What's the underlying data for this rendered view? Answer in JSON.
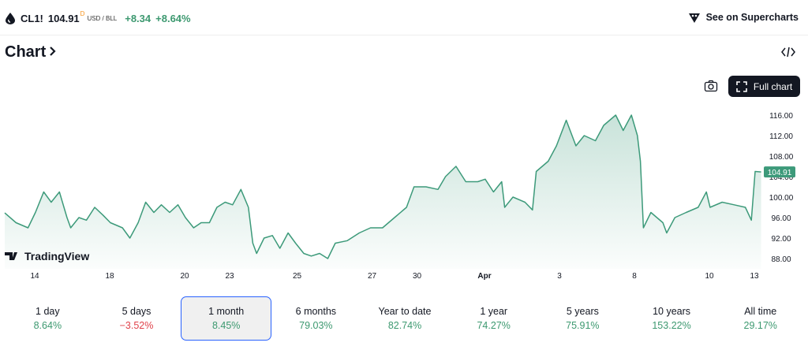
{
  "header": {
    "symbol": "CL1!",
    "price": "104.91",
    "price_superscript": "D",
    "currency": "USD / BLL",
    "change": "+8.34",
    "change_percent": "+8.64%",
    "supercharts": "See on Supercharts"
  },
  "section_title": "Chart",
  "full_chart": "Full chart",
  "watermark": "TradingView",
  "chart_data": {
    "type": "line",
    "color": "#3d9a7a",
    "x": [
      0,
      1.5,
      3.1,
      4.1,
      5.2,
      6.2,
      7.3,
      8.3,
      8.8,
      9.9,
      10.9,
      12,
      13.1,
      14.1,
      15.7,
      16.7,
      17.8,
      18.8,
      19.9,
      20.9,
      22,
      23.1,
      24.1,
      25.2,
      26.2,
      27.3,
      28.3,
      29.4,
      30.4,
      31.5,
      32.5,
      33.1,
      33.6,
      34.6,
      35.7,
      36.7,
      37.8,
      38.8,
      39.9,
      40.9,
      42,
      43.1,
      44.1,
      45.7,
      47.3,
      48.8,
      50.4,
      52,
      53.6,
      54.6,
      56.2,
      57.8,
      58.8,
      60.2,
      61.5,
      63.1,
      64.1,
      65.2,
      66.3,
      66.7,
      67.8,
      69.4,
      70.4,
      70.9,
      72.5,
      73.6,
      74.9,
      76.2,
      77.3,
      78.8,
      79.9,
      81.5,
      82.5,
      83.6,
      84.4,
      84.8,
      85.2,
      86.2,
      87.8,
      88.3,
      89.4,
      90.9,
      92.5,
      93.6,
      94.1,
      95.7,
      97.3,
      98.8,
      99.6,
      100.1,
      100.9
    ],
    "values": [
      96.9,
      95,
      94,
      97,
      101,
      99,
      101,
      96,
      94,
      96,
      95.5,
      98,
      96.5,
      95,
      94,
      92,
      95,
      99,
      97,
      98.5,
      97,
      98.5,
      96,
      94,
      95,
      95,
      98,
      99,
      98.5,
      101.5,
      98,
      91,
      89,
      92,
      92.5,
      90,
      93,
      91,
      89,
      88.5,
      89,
      88,
      91,
      91.5,
      93,
      94,
      94,
      96,
      98,
      102,
      102,
      101.5,
      104,
      106,
      103,
      103,
      103.5,
      101,
      103,
      98,
      100,
      99,
      97.5,
      105,
      107,
      110,
      115,
      110,
      112,
      111,
      114,
      116,
      113,
      116,
      112,
      107,
      94,
      97,
      95,
      93,
      96,
      97,
      98,
      101,
      98,
      99,
      98.5,
      98,
      95.5,
      105,
      104.91
    ],
    "xlim": [
      0,
      101
    ],
    "xticks": [
      {
        "value": 4,
        "label": "14"
      },
      {
        "value": 14,
        "label": "18"
      },
      {
        "value": 24,
        "label": "20"
      },
      {
        "value": 30,
        "label": "23"
      },
      {
        "value": 39,
        "label": "25"
      },
      {
        "value": 49,
        "label": "27"
      },
      {
        "value": 55,
        "label": "30"
      },
      {
        "value": 64,
        "label": "Apr"
      },
      {
        "value": 74,
        "label": "3"
      },
      {
        "value": 84,
        "label": "8"
      },
      {
        "value": 94,
        "label": "10"
      },
      {
        "value": 100,
        "label": "13"
      }
    ],
    "ylim": [
      86,
      118
    ],
    "yticks": [
      {
        "value": 88,
        "label": "88.00"
      },
      {
        "value": 92,
        "label": "92.00"
      },
      {
        "value": 96,
        "label": "96.00"
      },
      {
        "value": 100,
        "label": "100.00"
      },
      {
        "value": 104,
        "label": "104.00"
      },
      {
        "value": 108,
        "label": "108.00"
      },
      {
        "value": 112,
        "label": "112.00"
      },
      {
        "value": 116,
        "label": "116.00"
      }
    ]
  },
  "periods": [
    {
      "label": "1 day",
      "change": "8.64%"
    },
    {
      "label": "5 days",
      "change": "−3.52%",
      "negative": true
    },
    {
      "label": "1 month",
      "change": "8.45%"
    },
    {
      "label": "6 months",
      "change": "79.03%"
    },
    {
      "label": "Year to date",
      "change": "82.74%"
    },
    {
      "label": "1 year",
      "change": "74.27%"
    },
    {
      "label": "5 years",
      "change": "75.91%"
    },
    {
      "label": "10 years",
      "change": "153.22%"
    },
    {
      "label": "All time",
      "change": "29.17%"
    }
  ],
  "selected_period": 2
}
